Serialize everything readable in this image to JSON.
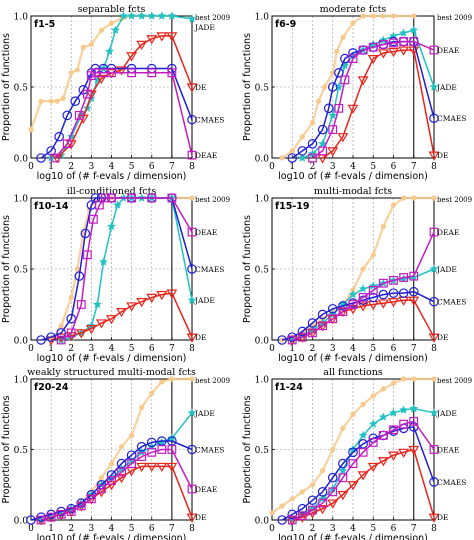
{
  "figure": {
    "xlabel": "log10 of (# f-evals / dimension)",
    "ylabel": "Proportion of functions",
    "xticks": [
      "0",
      "1",
      "2",
      "3",
      "4",
      "5",
      "6",
      "7",
      "8"
    ],
    "yticks": [
      "0.0",
      "0.5",
      "1.0"
    ]
  },
  "colors": {
    "best 2009": "#f7c98b",
    "JADE": "#22c1c3",
    "DE": "#e8231a",
    "CMAES": "#1f1fd6",
    "DEAE": "#c21cc2"
  },
  "chart_data": [
    {
      "type": "line",
      "title": "separable fcts",
      "label": "f1-5",
      "xlim": [
        0,
        8
      ],
      "ylim": [
        0,
        1
      ],
      "grid": true,
      "series": [
        {
          "name": "best 2009",
          "x": [
            0,
            0.5,
            1,
            1.3,
            1.6,
            2,
            2.3,
            2.6,
            3,
            3.5,
            4,
            4.5,
            5,
            5.5,
            6,
            6.5,
            7
          ],
          "y": [
            0.2,
            0.4,
            0.4,
            0.4,
            0.42,
            0.6,
            0.62,
            0.78,
            0.8,
            0.9,
            0.95,
            0.98,
            1.0,
            1.0,
            1.0,
            1.0,
            1.0
          ]
        },
        {
          "name": "JADE",
          "x": [
            1,
            1.5,
            2,
            2.5,
            2.8,
            3,
            3.3,
            3.6,
            3.9,
            4.2,
            4.6,
            5,
            5.5,
            6,
            6.5,
            7,
            8
          ],
          "y": [
            0,
            0.02,
            0.15,
            0.3,
            0.35,
            0.42,
            0.55,
            0.63,
            0.75,
            0.9,
            1.0,
            1.0,
            1.0,
            1.0,
            1.0,
            1.0,
            0.98
          ]
        },
        {
          "name": "DE",
          "x": [
            1.3,
            2,
            2.6,
            3,
            3.5,
            4,
            4.5,
            5,
            5.5,
            6,
            6.5,
            7,
            8
          ],
          "y": [
            0,
            0.1,
            0.28,
            0.45,
            0.56,
            0.6,
            0.62,
            0.72,
            0.8,
            0.84,
            0.86,
            0.86,
            0.5
          ]
        },
        {
          "name": "CMAES",
          "x": [
            0.5,
            1,
            1.4,
            1.8,
            2.2,
            2.6,
            3,
            3.2,
            3.6,
            4,
            5,
            6,
            7,
            8
          ],
          "y": [
            0,
            0.05,
            0.15,
            0.3,
            0.4,
            0.48,
            0.6,
            0.63,
            0.63,
            0.63,
            0.63,
            0.63,
            0.63,
            0.27
          ]
        },
        {
          "name": "DEAE",
          "x": [
            1.2,
            1.8,
            2.4,
            2.8,
            3,
            3.2,
            3.6,
            4,
            5,
            6,
            7,
            8
          ],
          "y": [
            0,
            0.1,
            0.3,
            0.45,
            0.58,
            0.6,
            0.6,
            0.6,
            0.6,
            0.6,
            0.6,
            0.02
          ]
        }
      ]
    },
    {
      "type": "line",
      "title": "moderate fcts",
      "label": "f6-9",
      "xlim": [
        0,
        8
      ],
      "ylim": [
        0,
        1
      ],
      "grid": true,
      "series": [
        {
          "name": "best 2009",
          "x": [
            0.5,
            1,
            1.5,
            2,
            2.3,
            2.6,
            3,
            3.2,
            3.5,
            4,
            4.5,
            5,
            5.5,
            6,
            7
          ],
          "y": [
            0,
            0.05,
            0.15,
            0.25,
            0.4,
            0.5,
            0.6,
            0.75,
            0.85,
            0.95,
            1.0,
            1.0,
            1.0,
            1.0,
            1.0
          ]
        },
        {
          "name": "JADE",
          "x": [
            1.5,
            2,
            2.5,
            3,
            3.3,
            3.6,
            4,
            4.5,
            5,
            5.5,
            6,
            6.5,
            7,
            8
          ],
          "y": [
            0,
            0.03,
            0.1,
            0.3,
            0.5,
            0.65,
            0.72,
            0.76,
            0.8,
            0.83,
            0.86,
            0.88,
            0.9,
            0.5
          ]
        },
        {
          "name": "DE",
          "x": [
            2.5,
            3,
            3.5,
            4,
            4.5,
            5,
            5.5,
            6,
            6.5,
            7,
            8
          ],
          "y": [
            0,
            0.05,
            0.15,
            0.35,
            0.55,
            0.7,
            0.74,
            0.75,
            0.76,
            0.76,
            0.02
          ]
        },
        {
          "name": "CMAES",
          "x": [
            1,
            1.5,
            2,
            2.5,
            2.8,
            3,
            3.3,
            3.6,
            4,
            4.5,
            5,
            5.5,
            6,
            6.5,
            7,
            8
          ],
          "y": [
            0,
            0.05,
            0.1,
            0.2,
            0.35,
            0.5,
            0.6,
            0.7,
            0.74,
            0.76,
            0.78,
            0.8,
            0.82,
            0.82,
            0.82,
            0.28
          ]
        },
        {
          "name": "DEAE",
          "x": [
            2,
            2.5,
            3,
            3.3,
            3.6,
            4,
            4.5,
            5,
            5.5,
            6,
            6.5,
            7,
            8
          ],
          "y": [
            0,
            0.05,
            0.2,
            0.35,
            0.55,
            0.7,
            0.76,
            0.78,
            0.8,
            0.81,
            0.82,
            0.82,
            0.76
          ]
        }
      ]
    },
    {
      "type": "line",
      "title": "ill-conditioned fcts",
      "label": "f10-14",
      "xlim": [
        0,
        8
      ],
      "ylim": [
        0,
        1
      ],
      "grid": true,
      "series": [
        {
          "name": "best 2009",
          "x": [
            1,
            1.5,
            2,
            2.3,
            2.6,
            2.9,
            3.2,
            3.5,
            4,
            5,
            6,
            7,
            8
          ],
          "y": [
            0,
            0.1,
            0.3,
            0.5,
            0.75,
            0.92,
            0.98,
            1.0,
            1.0,
            1.0,
            1.0,
            1.0,
            1.0
          ]
        },
        {
          "name": "JADE",
          "x": [
            1.5,
            2,
            2.5,
            3,
            3.3,
            3.6,
            4,
            4.3,
            4.6,
            5,
            5.5,
            6,
            7,
            8
          ],
          "y": [
            0,
            0.02,
            0.05,
            0.1,
            0.25,
            0.55,
            0.8,
            0.95,
            1.0,
            1.0,
            1.0,
            1.0,
            1.0,
            0.28
          ]
        },
        {
          "name": "DE",
          "x": [
            1,
            1.5,
            2,
            2.5,
            3,
            3.5,
            4,
            4.5,
            5,
            5.5,
            6,
            6.5,
            7,
            8
          ],
          "y": [
            0,
            0.02,
            0.03,
            0.05,
            0.08,
            0.12,
            0.15,
            0.2,
            0.24,
            0.27,
            0.3,
            0.32,
            0.33,
            0.02
          ]
        },
        {
          "name": "CMAES",
          "x": [
            0.5,
            1,
            1.5,
            2,
            2.4,
            2.7,
            3,
            3.2,
            3.5,
            4,
            5,
            6,
            7,
            8
          ],
          "y": [
            0,
            0.02,
            0.05,
            0.15,
            0.45,
            0.75,
            0.95,
            1.0,
            1.0,
            1.0,
            1.0,
            1.0,
            1.0,
            0.5
          ]
        },
        {
          "name": "DEAE",
          "x": [
            1.5,
            2,
            2.5,
            2.8,
            3.1,
            3.4,
            3.7,
            4,
            5,
            6,
            7,
            8
          ],
          "y": [
            0,
            0.05,
            0.25,
            0.6,
            0.85,
            0.95,
            1.0,
            1.0,
            1.0,
            1.0,
            1.0,
            0.76
          ]
        }
      ]
    },
    {
      "type": "line",
      "title": "multi-modal fcts",
      "label": "f15-19",
      "xlim": [
        0,
        8
      ],
      "ylim": [
        0,
        1
      ],
      "grid": true,
      "series": [
        {
          "name": "best 2009",
          "x": [
            0.5,
            1,
            1.5,
            2,
            2.5,
            3,
            3.5,
            4,
            4.5,
            5,
            5.5,
            6,
            6.5,
            7,
            8
          ],
          "y": [
            0,
            0.02,
            0.05,
            0.1,
            0.15,
            0.2,
            0.25,
            0.35,
            0.5,
            0.6,
            0.8,
            0.95,
            1.0,
            1.0,
            1.0
          ]
        },
        {
          "name": "JADE",
          "x": [
            1,
            1.5,
            2,
            2.5,
            3,
            3.5,
            4,
            4.5,
            5,
            5.5,
            6,
            6.5,
            7,
            8
          ],
          "y": [
            0,
            0.03,
            0.07,
            0.12,
            0.18,
            0.25,
            0.32,
            0.36,
            0.38,
            0.4,
            0.42,
            0.43,
            0.44,
            0.5
          ]
        },
        {
          "name": "DE",
          "x": [
            1,
            1.5,
            2,
            2.5,
            3,
            3.5,
            4,
            4.5,
            5,
            5.5,
            6,
            6.5,
            7,
            8
          ],
          "y": [
            0,
            0.02,
            0.05,
            0.1,
            0.15,
            0.2,
            0.22,
            0.24,
            0.25,
            0.26,
            0.27,
            0.28,
            0.28,
            0.02
          ]
        },
        {
          "name": "CMAES",
          "x": [
            0.5,
            1,
            1.5,
            2,
            2.5,
            3,
            3.5,
            4,
            4.5,
            5,
            5.5,
            6,
            6.5,
            7,
            8
          ],
          "y": [
            0,
            0.02,
            0.06,
            0.12,
            0.18,
            0.22,
            0.24,
            0.26,
            0.28,
            0.3,
            0.32,
            0.33,
            0.33,
            0.34,
            0.27
          ]
        },
        {
          "name": "DEAE",
          "x": [
            1,
            1.5,
            2,
            2.5,
            3,
            3.5,
            4,
            4.5,
            5,
            5.5,
            6,
            6.5,
            7,
            8
          ],
          "y": [
            0,
            0.02,
            0.05,
            0.1,
            0.15,
            0.2,
            0.25,
            0.3,
            0.35,
            0.4,
            0.42,
            0.44,
            0.45,
            0.76
          ]
        }
      ]
    },
    {
      "type": "line",
      "title": "weakly structured multi-modal fcts",
      "label": "f20-24",
      "xlim": [
        0,
        8
      ],
      "ylim": [
        0,
        1
      ],
      "grid": true,
      "series": [
        {
          "name": "best 2009",
          "x": [
            0.5,
            1,
            1.5,
            2,
            2.5,
            3,
            3.5,
            4,
            4.5,
            5,
            5.5,
            6,
            6.5,
            7,
            8
          ],
          "y": [
            0,
            0.02,
            0.05,
            0.08,
            0.12,
            0.2,
            0.3,
            0.4,
            0.52,
            0.6,
            0.8,
            0.9,
            0.98,
            1.0,
            1.0
          ]
        },
        {
          "name": "JADE",
          "x": [
            0.5,
            1,
            1.5,
            2,
            2.5,
            3,
            3.5,
            4,
            4.5,
            5,
            5.5,
            6,
            6.5,
            7,
            8
          ],
          "y": [
            0,
            0.02,
            0.04,
            0.08,
            0.12,
            0.18,
            0.25,
            0.3,
            0.36,
            0.42,
            0.48,
            0.52,
            0.55,
            0.58,
            0.76
          ]
        },
        {
          "name": "DE",
          "x": [
            0.5,
            1,
            1.5,
            2,
            2.5,
            3,
            3.5,
            4,
            4.5,
            5,
            5.5,
            6,
            6.5,
            7,
            8
          ],
          "y": [
            0,
            0.02,
            0.04,
            0.06,
            0.1,
            0.15,
            0.2,
            0.25,
            0.3,
            0.35,
            0.38,
            0.38,
            0.38,
            0.38,
            0.02
          ]
        },
        {
          "name": "CMAES",
          "x": [
            0,
            0.5,
            1,
            1.5,
            2,
            2.5,
            3,
            3.5,
            4,
            4.5,
            5,
            5.5,
            6,
            6.5,
            7,
            8
          ],
          "y": [
            0,
            0.02,
            0.04,
            0.06,
            0.08,
            0.12,
            0.18,
            0.25,
            0.32,
            0.4,
            0.46,
            0.52,
            0.55,
            0.56,
            0.56,
            0.5
          ]
        },
        {
          "name": "DEAE",
          "x": [
            0.5,
            1,
            1.5,
            2,
            2.5,
            3,
            3.5,
            4,
            4.5,
            5,
            5.5,
            6,
            6.5,
            7,
            8
          ],
          "y": [
            0,
            0.02,
            0.04,
            0.06,
            0.1,
            0.15,
            0.22,
            0.28,
            0.34,
            0.4,
            0.45,
            0.48,
            0.5,
            0.5,
            0.22
          ]
        }
      ]
    },
    {
      "type": "line",
      "title": "all functions",
      "label": "f1-24",
      "xlim": [
        0,
        8
      ],
      "ylim": [
        0,
        1
      ],
      "grid": true,
      "series": [
        {
          "name": "best 2009",
          "x": [
            0,
            0.5,
            1,
            1.5,
            2,
            2.5,
            3,
            3.5,
            4,
            4.5,
            5,
            5.5,
            6,
            6.5,
            7,
            8
          ],
          "y": [
            0.05,
            0.1,
            0.15,
            0.2,
            0.25,
            0.35,
            0.5,
            0.65,
            0.75,
            0.82,
            0.88,
            0.93,
            0.97,
            1.0,
            1.0,
            1.0
          ]
        },
        {
          "name": "JADE",
          "x": [
            1,
            1.5,
            2,
            2.5,
            3,
            3.5,
            4,
            4.5,
            5,
            5.5,
            6,
            6.5,
            7,
            8
          ],
          "y": [
            0,
            0.04,
            0.08,
            0.15,
            0.22,
            0.35,
            0.5,
            0.6,
            0.68,
            0.73,
            0.76,
            0.78,
            0.79,
            0.76
          ]
        },
        {
          "name": "DE",
          "x": [
            1,
            1.5,
            2,
            2.5,
            3,
            3.5,
            4,
            4.5,
            5,
            5.5,
            6,
            6.5,
            7,
            8
          ],
          "y": [
            0,
            0.02,
            0.05,
            0.08,
            0.12,
            0.18,
            0.25,
            0.32,
            0.38,
            0.42,
            0.46,
            0.48,
            0.5,
            0.02
          ]
        },
        {
          "name": "CMAES",
          "x": [
            0.5,
            1,
            1.5,
            2,
            2.5,
            3,
            3.5,
            4,
            4.5,
            5,
            5.5,
            6,
            6.5,
            7,
            8
          ],
          "y": [
            0,
            0.04,
            0.08,
            0.14,
            0.2,
            0.3,
            0.4,
            0.48,
            0.54,
            0.58,
            0.6,
            0.63,
            0.65,
            0.66,
            0.27
          ]
        },
        {
          "name": "DEAE",
          "x": [
            1,
            1.5,
            2,
            2.5,
            3,
            3.5,
            4,
            4.5,
            5,
            5.5,
            6,
            6.5,
            7,
            8
          ],
          "y": [
            0,
            0.03,
            0.07,
            0.12,
            0.2,
            0.3,
            0.4,
            0.48,
            0.55,
            0.6,
            0.64,
            0.68,
            0.7,
            0.5
          ]
        }
      ]
    }
  ]
}
